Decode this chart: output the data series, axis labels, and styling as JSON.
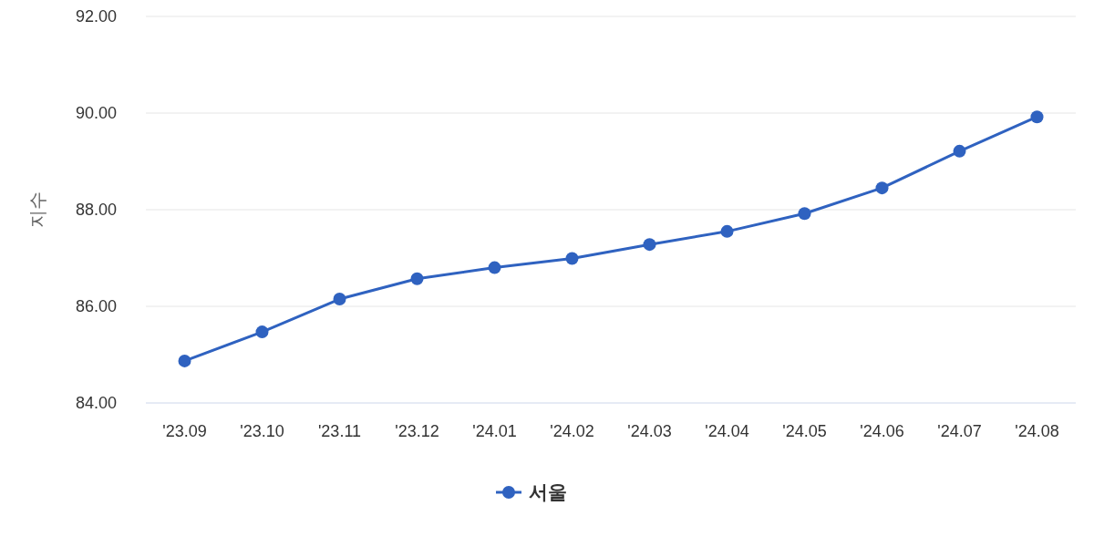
{
  "chart_data": {
    "type": "line",
    "ylabel": "지수",
    "categories": [
      "'23.09",
      "'23.10",
      "'23.11",
      "'23.12",
      "'24.01",
      "'24.02",
      "'24.03",
      "'24.04",
      "'24.05",
      "'24.06",
      "'24.07",
      "'24.08"
    ],
    "series": [
      {
        "name": "서울",
        "color": "#2f62c0",
        "values": [
          84.87,
          85.47,
          86.15,
          86.57,
          86.8,
          86.99,
          87.28,
          87.55,
          87.92,
          88.45,
          89.21,
          89.92
        ]
      }
    ],
    "ylim": [
      84,
      92
    ],
    "yticks": [
      {
        "value": 84,
        "label": "84.00"
      },
      {
        "value": 86,
        "label": "86.00"
      },
      {
        "value": 88,
        "label": "88.00"
      },
      {
        "value": 90,
        "label": "90.00"
      },
      {
        "value": 92,
        "label": "92.00"
      }
    ],
    "grid": "y",
    "legend": "bottom",
    "marker": "circle",
    "line_style": "solid"
  }
}
